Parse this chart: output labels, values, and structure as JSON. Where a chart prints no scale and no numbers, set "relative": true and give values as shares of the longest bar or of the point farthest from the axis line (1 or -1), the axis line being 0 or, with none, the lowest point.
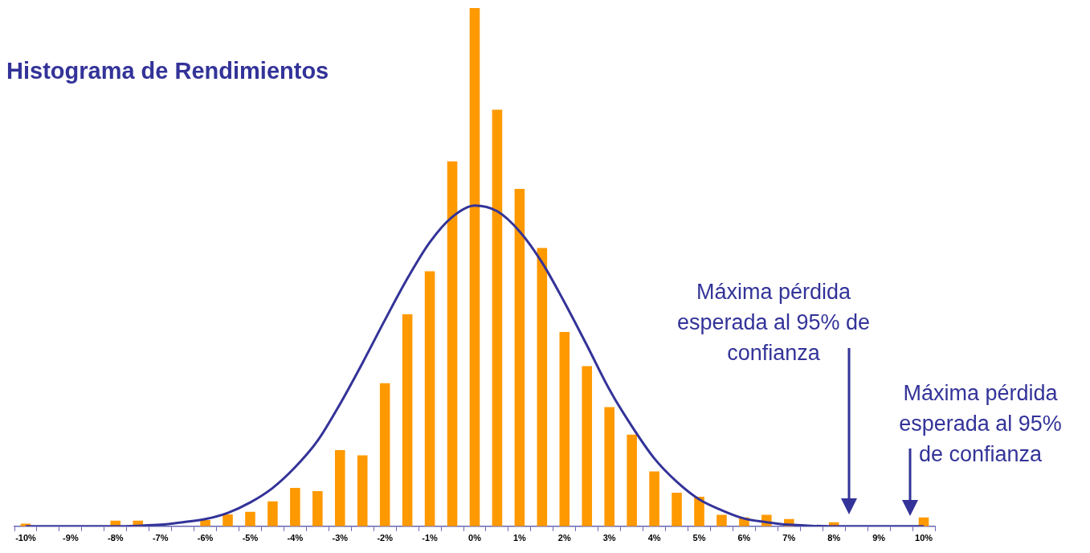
{
  "chart_data": {
    "type": "bar",
    "title": "Histograma de Rendimientos",
    "categories": [
      "-10%",
      null,
      "-9%",
      null,
      "-8%",
      null,
      "-7%",
      null,
      "-6%",
      null,
      "-5%",
      null,
      "-4%",
      null,
      "-3%",
      null,
      "-2%",
      null,
      "-1%",
      null,
      "0%",
      null,
      "1%",
      null,
      "2%",
      null,
      "3%",
      null,
      "4%",
      null,
      "5%",
      null,
      "6%",
      null,
      "7%",
      null,
      "8%",
      null,
      "9%",
      null,
      "10%"
    ],
    "series": [
      {
        "type": "bar",
        "color": "#ff9900",
        "values": [
          0.005,
          0,
          0,
          0,
          0.011,
          0.011,
          0,
          null,
          0.012,
          0.023,
          0.028,
          0.048,
          0.074,
          0.068,
          0.147,
          0.137,
          0.276,
          0.409,
          0.492,
          0.704,
          1,
          0.804,
          0.651,
          0.537,
          0.375,
          0.309,
          0.23,
          0.177,
          0.106,
          0.065,
          0.057,
          0.022,
          0.017,
          0.022,
          0.014,
          null,
          0.008,
          null,
          0,
          0,
          0.017
        ]
      },
      {
        "type": "line",
        "color": "#333399",
        "values": [
          0,
          0,
          0,
          0,
          0,
          0.001,
          0.003,
          0.008,
          0.014,
          0.026,
          0.046,
          0.074,
          0.114,
          0.165,
          0.236,
          0.315,
          0.398,
          0.478,
          0.548,
          0.597,
          0.619,
          0.608,
          0.569,
          0.509,
          0.432,
          0.349,
          0.264,
          0.193,
          0.131,
          0.086,
          0.052,
          0.031,
          0.015,
          0.008,
          0.003,
          0.001,
          0,
          0,
          0,
          0,
          0
        ]
      }
    ],
    "relative": true,
    "grid": false,
    "legend": false,
    "marker": "none",
    "annotations": [
      "Máxima pérdida esperada al 95% de confianza",
      "Máxima pérdida esperada al 95% de confianza"
    ]
  }
}
